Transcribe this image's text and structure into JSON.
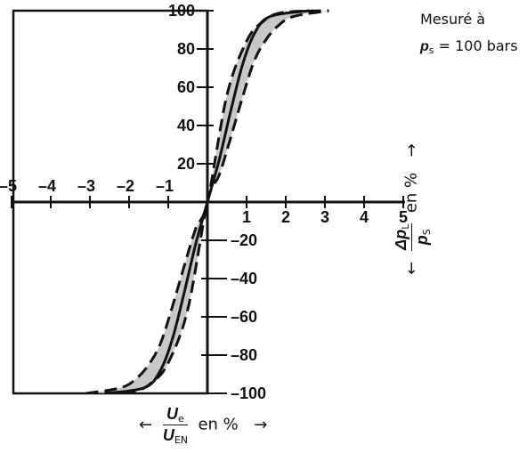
{
  "chart_data": {
    "type": "line",
    "x_range": [
      -5,
      5
    ],
    "y_range": [
      -100,
      100
    ],
    "x_ticks": [
      "-5",
      "-4",
      "-3",
      "-2",
      "-1",
      "1",
      "2",
      "3",
      "4",
      "5"
    ],
    "x_tick_values": [
      -5,
      -4,
      -3,
      -2,
      -1,
      1,
      2,
      3,
      4,
      5
    ],
    "y_ticks": [
      "100",
      "80",
      "60",
      "40",
      "20",
      "-20",
      "-40",
      "-60",
      "-80",
      "-100"
    ],
    "y_tick_values": [
      100,
      80,
      60,
      40,
      20,
      -20,
      -40,
      -60,
      -80,
      -100
    ],
    "fill_color": "#c8c8c8",
    "series": [
      {
        "style": "dashed",
        "x": [
          -3.1,
          -2.2,
          -1.8,
          -1.5,
          -1.2,
          -0.9,
          -0.6,
          -0.3,
          0,
          0.5,
          1.0,
          1.4,
          1.9,
          3.1
        ],
        "y": [
          -100,
          -97,
          -92,
          -85,
          -74,
          -55,
          -34,
          -14,
          0,
          56,
          84,
          94,
          99,
          100
        ]
      },
      {
        "style": "solid",
        "x": [
          -2.6,
          -1.6,
          -1.2,
          -0.9,
          -0.6,
          -0.3,
          0,
          0.3,
          0.6,
          0.9,
          1.2,
          1.6,
          2.6
        ],
        "y": [
          -100,
          -97,
          -88,
          -72,
          -48,
          -22,
          0,
          22,
          48,
          72,
          88,
          97,
          100
        ]
      },
      {
        "style": "dashed",
        "x": [
          -3.1,
          -1.9,
          -1.4,
          -1.0,
          -0.5,
          0,
          0.3,
          0.6,
          0.9,
          1.2,
          1.5,
          1.8,
          2.2,
          3.1
        ],
        "y": [
          -100,
          -99,
          -94,
          -84,
          -56,
          0,
          14,
          34,
          55,
          74,
          85,
          92,
          97,
          100
        ]
      }
    ]
  },
  "annotation": {
    "line1": "Mesuré à",
    "p_symbol": "p",
    "p_sub": "s",
    "line2_rest": " = 100 bars"
  },
  "x_axis_label": {
    "left_arrow": "←",
    "num_symbol": "U",
    "num_sub": "e",
    "den_symbol": "U",
    "den_sub": "EN",
    "text": " en % ",
    "right_arrow": "→"
  },
  "y_axis_label": {
    "left_arrow": "←",
    "num_symbol": "Δp",
    "num_sub": "L",
    "den_symbol": "p",
    "den_sub": "S",
    "text": " en % ",
    "right_arrow": "→"
  }
}
